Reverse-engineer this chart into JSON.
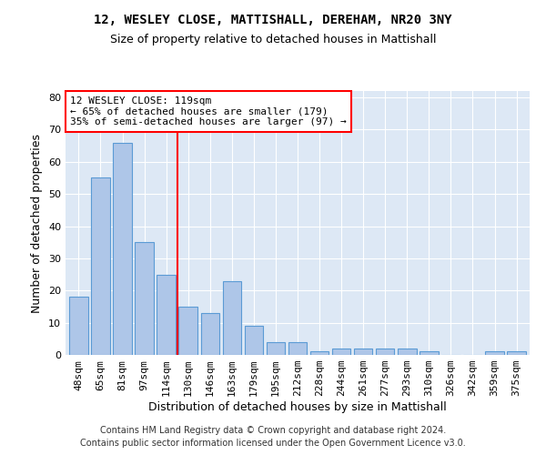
{
  "title1": "12, WESLEY CLOSE, MATTISHALL, DEREHAM, NR20 3NY",
  "title2": "Size of property relative to detached houses in Mattishall",
  "xlabel": "Distribution of detached houses by size in Mattishall",
  "ylabel": "Number of detached properties",
  "categories": [
    "48sqm",
    "65sqm",
    "81sqm",
    "97sqm",
    "114sqm",
    "130sqm",
    "146sqm",
    "163sqm",
    "179sqm",
    "195sqm",
    "212sqm",
    "228sqm",
    "244sqm",
    "261sqm",
    "277sqm",
    "293sqm",
    "310sqm",
    "326sqm",
    "342sqm",
    "359sqm",
    "375sqm"
  ],
  "values": [
    18,
    55,
    66,
    35,
    25,
    15,
    13,
    23,
    9,
    4,
    4,
    1,
    2,
    2,
    2,
    2,
    1,
    0,
    0,
    1,
    1
  ],
  "bar_color": "#aec6e8",
  "bar_edge_color": "#5b9bd5",
  "red_line_index": 4.5,
  "annotation_line1": "12 WESLEY CLOSE: 119sqm",
  "annotation_line2": "← 65% of detached houses are smaller (179)",
  "annotation_line3": "35% of semi-detached houses are larger (97) →",
  "annotation_box_color": "white",
  "annotation_box_edge": "red",
  "ylim": [
    0,
    82
  ],
  "yticks": [
    0,
    10,
    20,
    30,
    40,
    50,
    60,
    70,
    80
  ],
  "footnote1": "Contains HM Land Registry data © Crown copyright and database right 2024.",
  "footnote2": "Contains public sector information licensed under the Open Government Licence v3.0.",
  "background_color": "#dde8f5",
  "plot_background": "white",
  "grid_color": "white"
}
